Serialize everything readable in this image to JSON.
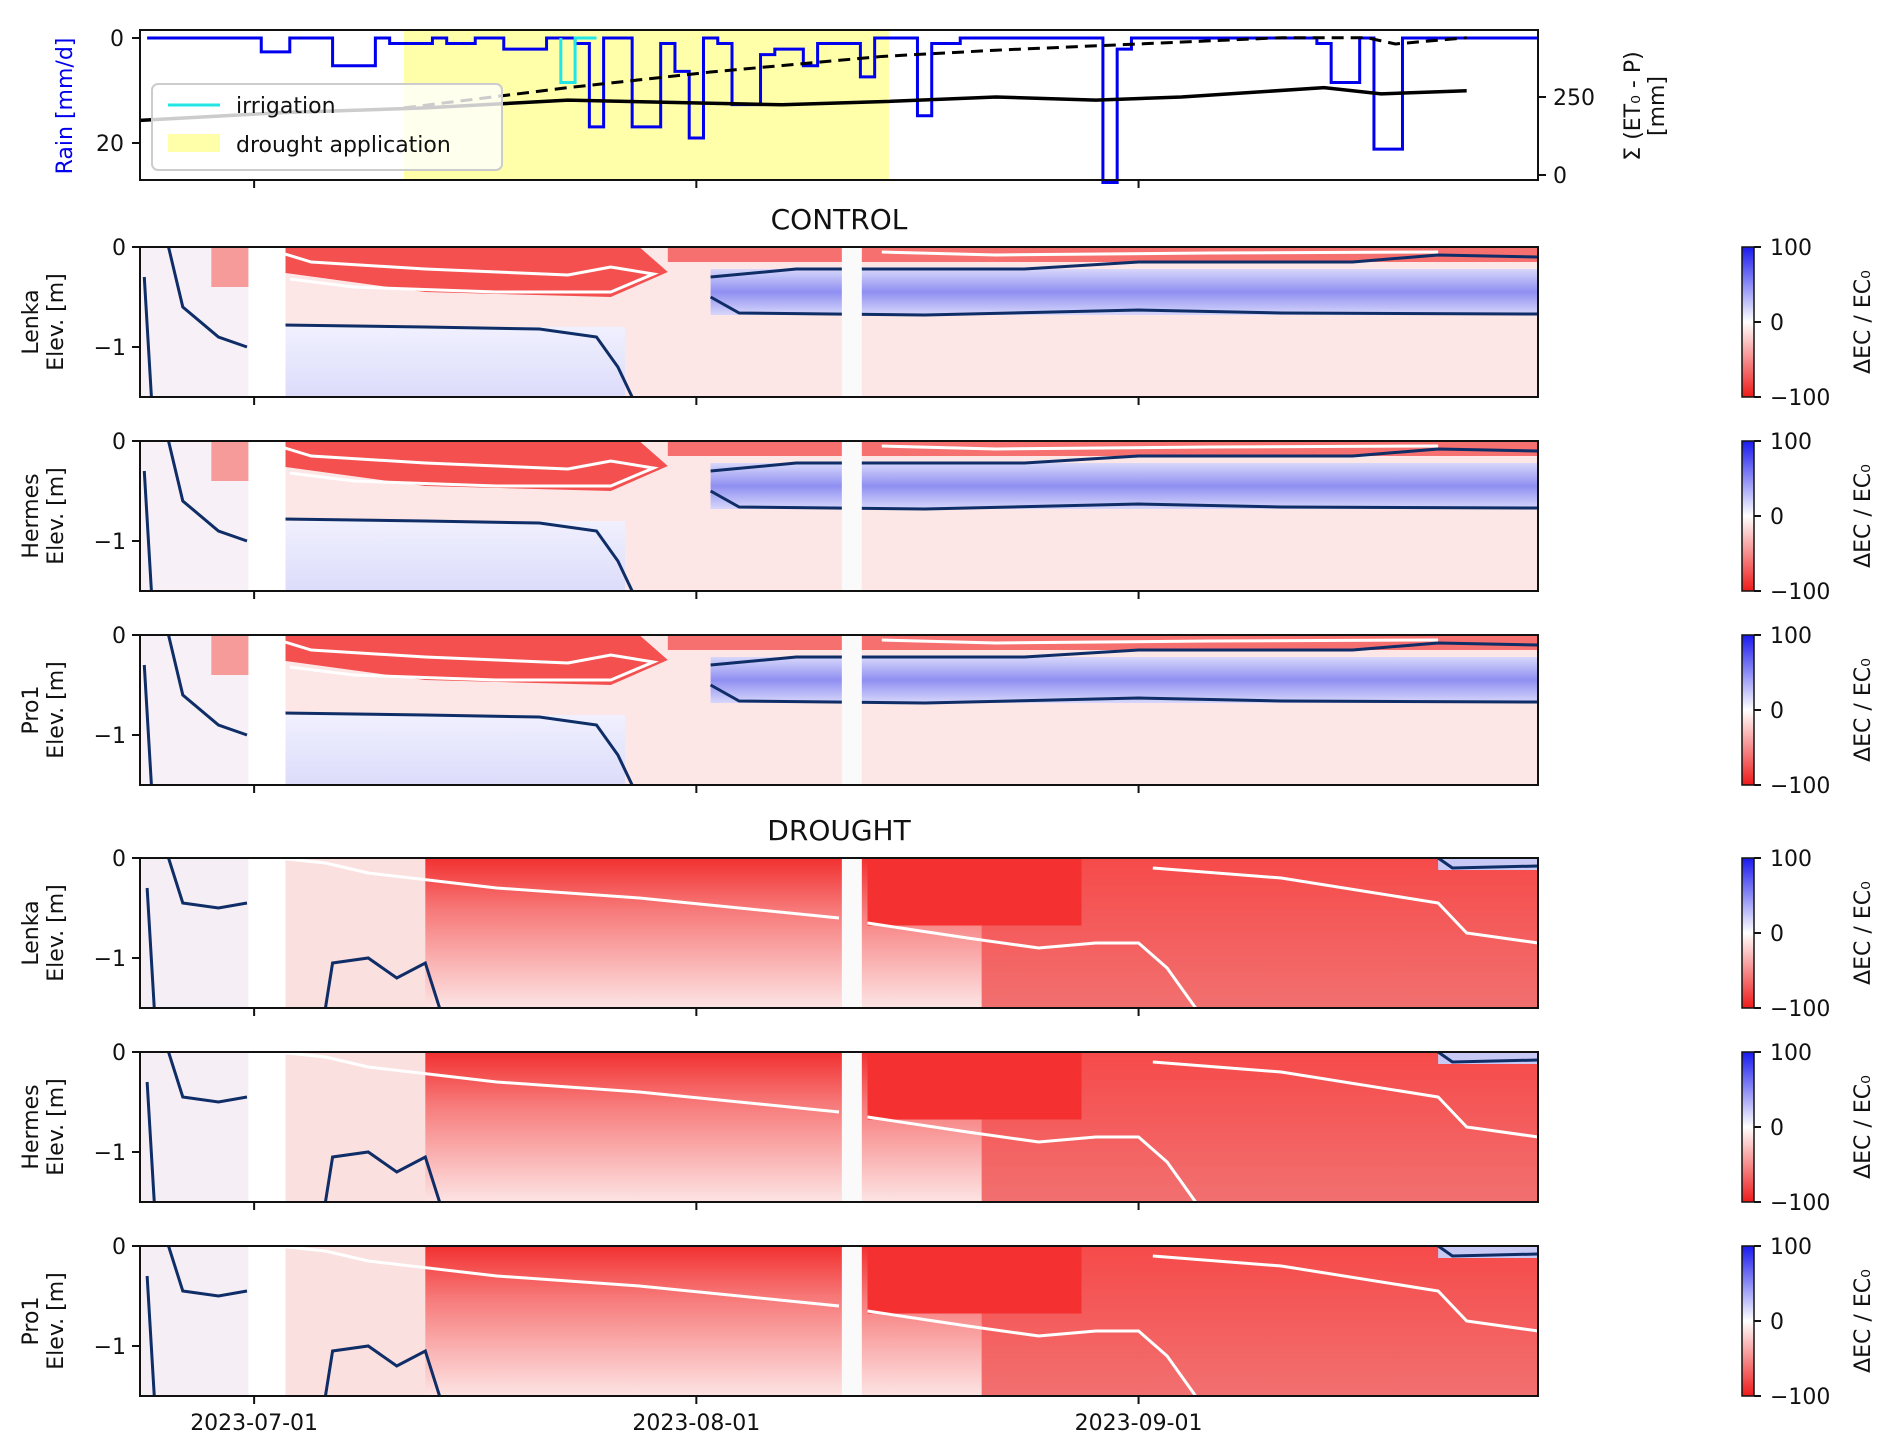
{
  "chart_data": [
    {
      "type": "line",
      "panel": "weather",
      "x_range": [
        "2023-06-23",
        "2023-09-28"
      ],
      "rain": {
        "ylabel": "Rain [mm/d]",
        "ylim": [
          27,
          0
        ],
        "ticks": [
          0,
          20
        ],
        "days": [
          0.5,
          8.5,
          10.5,
          13.5,
          16.5,
          17.5,
          20.5,
          21.5,
          23.5,
          25.5,
          28.5,
          30.5,
          31.5,
          32.5,
          34.5,
          36.5,
          37.5,
          38.5,
          39.5,
          40.5,
          41.5,
          43.5,
          44.5,
          46.5,
          47.5,
          50.5,
          51.5,
          53.5,
          54.5,
          55.5,
          57.5,
          64.5,
          65.5,
          67.5,
          68.5,
          69.5,
          70.5,
          72.5,
          73.5,
          75.5,
          76.5,
          82.5,
          83.5,
          85.5,
          86.5,
          88.5,
          90.5,
          91.5,
          92.5
        ],
        "values": [
          0,
          2.5,
          0,
          5,
          0,
          1,
          0,
          1,
          0,
          2,
          0,
          1,
          16,
          0,
          16,
          1,
          6,
          18,
          0,
          1,
          12,
          3,
          2,
          5,
          1,
          7,
          0,
          0,
          14,
          1,
          0,
          0,
          0,
          26,
          2,
          0,
          0,
          0,
          0,
          0,
          0,
          1,
          8,
          0,
          20,
          0,
          0,
          0,
          0
        ]
      },
      "irrigation": {
        "label": "irrigation",
        "color": "#22e6e6",
        "days": [
          29.5,
          30.5
        ],
        "values": [
          8,
          0
        ]
      },
      "drought_application": {
        "label": "drought application",
        "color": "#ffffaa",
        "start_day": 18.5,
        "end_day": 52.5
      },
      "cumulative": {
        "ylabel": "Σ (ET0 - P) [mm]",
        "ticks": [
          0,
          250
        ],
        "ylim": [
          -20,
          520
        ],
        "control_days": [
          0,
          10,
          20,
          30,
          40,
          45,
          52,
          60,
          67,
          73,
          83,
          87,
          93
        ],
        "control_values": [
          175,
          200,
          215,
          240,
          230,
          225,
          235,
          250,
          240,
          250,
          280,
          260,
          270
        ],
        "drought_days": [
          18.5,
          30,
          40,
          52,
          60,
          70,
          80,
          86,
          88,
          93
        ],
        "drought_values": [
          215,
          280,
          330,
          380,
          400,
          420,
          440,
          440,
          420,
          440
        ]
      },
      "legend": {
        "position": "bottom-left",
        "entries": [
          "irrigation",
          "drought application"
        ]
      }
    },
    {
      "type": "heatmap",
      "section": "CONTROL",
      "panels": [
        {
          "sensor": "Lenka",
          "ylabel": "Elev. [m]"
        },
        {
          "sensor": "Hermes",
          "ylabel": "Elev. [m]"
        },
        {
          "sensor": "Pro1",
          "ylabel": "Elev. [m]"
        }
      ],
      "ylim": [
        -1.5,
        0
      ],
      "yticks": [
        0,
        -1
      ],
      "colorbar": {
        "label": "ΔEC / EC0",
        "ticks": [
          100,
          0,
          -100
        ],
        "cmap": "bwr_r"
      },
      "contour_levels": {
        "positive": "navy",
        "negative": "white"
      }
    },
    {
      "type": "heatmap",
      "section": "DROUGHT",
      "panels": [
        {
          "sensor": "Lenka",
          "ylabel": "Elev. [m]"
        },
        {
          "sensor": "Hermes",
          "ylabel": "Elev. [m]"
        },
        {
          "sensor": "Pro1",
          "ylabel": "Elev. [m]"
        }
      ],
      "ylim": [
        -1.5,
        0
      ],
      "yticks": [
        0,
        -1
      ],
      "colorbar": {
        "label": "ΔEC / EC0",
        "ticks": [
          100,
          0,
          -100
        ],
        "cmap": "bwr_r"
      },
      "contour_levels": {
        "positive": "navy",
        "negative": "white"
      }
    }
  ],
  "x_axis": {
    "tick_labels": [
      "2023-07-01",
      "2023-08-01",
      "2023-09-01"
    ],
    "tick_days": [
      8,
      39,
      70
    ],
    "range_days": [
      0,
      98
    ]
  },
  "labels": {
    "control_title": "CONTROL",
    "drought_title": "DROUGHT",
    "rain_ylabel": "Rain [mm/d]",
    "cum_ylabel_line1": "Σ (ET₀ - P)",
    "cum_ylabel_line2": "[mm]",
    "elev": "Elev. [m]",
    "cbar_label": "ΔEC / EC₀",
    "legend_irrigation": "irrigation",
    "legend_drought": "drought application",
    "sensors": [
      "Lenka",
      "Hermes",
      "Pro1",
      "Lenka",
      "Hermes",
      "Pro1"
    ]
  },
  "colors": {
    "rain": "#0000ee",
    "irrigation": "#22e6e6",
    "drought_band": "#ffffaa",
    "cumulative": "#000000",
    "contour_pos": "#0f2d66",
    "contour_neg": "#ffffff",
    "cbar_top": "#1a1aee",
    "cbar_bottom": "#ee1a1a"
  }
}
